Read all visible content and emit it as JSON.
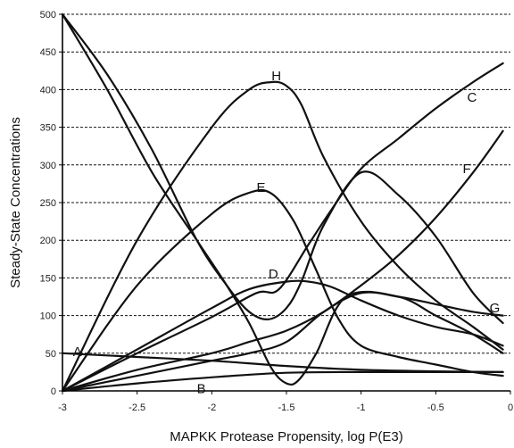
{
  "chart_data": {
    "type": "line",
    "xlabel": "MAPKK Protease Propensity, log P(E3)",
    "ylabel": "Steady-State Concentrations",
    "xlim": [
      -3,
      0
    ],
    "ylim": [
      0,
      500
    ],
    "grid": "horizontal dashed",
    "x_ticks": [
      "-3",
      "-2.5",
      "-2",
      "-1.5",
      "-1",
      "-0.5",
      "0"
    ],
    "y_ticks": [
      "0",
      "50",
      "100",
      "150",
      "200",
      "250",
      "300",
      "350",
      "400",
      "450",
      "500"
    ],
    "series": [
      {
        "name": "A",
        "label": {
          "x": -2.93,
          "y": 52
        },
        "x": [
          -3,
          -2.5,
          -2,
          -1.5,
          -1,
          -0.5,
          -0.05
        ],
        "values": [
          50,
          45,
          40,
          33,
          28,
          26,
          25
        ]
      },
      {
        "name": "B",
        "label": {
          "x": -2.1,
          "y": 3
        },
        "x": [
          -3,
          -2.5,
          -2,
          -1.5,
          -1,
          -0.5,
          -0.05
        ],
        "values": [
          0,
          10,
          18,
          24,
          25,
          25,
          25
        ]
      },
      {
        "name": "C",
        "label": {
          "x": -0.29,
          "y": 390
        },
        "x": [
          -3,
          -2.5,
          -2,
          -1.7,
          -1.55,
          -1.35,
          -1.2,
          -1,
          -0.75,
          -0.5,
          -0.25,
          -0.05
        ],
        "values": [
          0,
          50,
          98,
          130,
          135,
          195,
          240,
          295,
          335,
          375,
          410,
          435
        ]
      },
      {
        "name": "D",
        "label": {
          "x": -1.62,
          "y": 155
        },
        "x": [
          -3,
          -2.5,
          -2,
          -1.75,
          -1.5,
          -1.35,
          -1.2,
          -1,
          -0.75,
          -0.5,
          -0.25,
          -0.05
        ],
        "values": [
          0,
          55,
          110,
          135,
          145,
          145,
          138,
          120,
          100,
          85,
          75,
          60
        ]
      },
      {
        "name": "E",
        "label": {
          "x": -1.7,
          "y": 270
        },
        "x": [
          -3,
          -2.5,
          -2,
          -1.75,
          -1.6,
          -1.45,
          -1.3,
          -1.15,
          -1,
          -0.75,
          -0.5,
          -0.25,
          -0.05
        ],
        "values": [
          0,
          140,
          235,
          263,
          262,
          225,
          160,
          95,
          60,
          45,
          35,
          25,
          20
        ]
      },
      {
        "name": "F",
        "label": {
          "x": -0.32,
          "y": 295
        },
        "x": [
          -3,
          -2.5,
          -2,
          -1.75,
          -1.5,
          -1.25,
          -1,
          -0.75,
          -0.5,
          -0.25,
          -0.05
        ],
        "values": [
          0,
          28,
          50,
          65,
          80,
          105,
          140,
          180,
          230,
          290,
          345
        ]
      },
      {
        "name": "G",
        "label": {
          "x": -0.14,
          "y": 110
        },
        "x": [
          -3,
          -2.5,
          -2,
          -1.75,
          -1.5,
          -1.25,
          -1,
          -0.75,
          -0.5,
          -0.25,
          -0.05
        ],
        "values": [
          0,
          20,
          40,
          50,
          65,
          105,
          130,
          125,
          115,
          105,
          100
        ]
      },
      {
        "name": "H",
        "label": {
          "x": -1.6,
          "y": 418
        },
        "x": [
          -3,
          -2.5,
          -2,
          -1.75,
          -1.6,
          -1.5,
          -1.4,
          -1.25,
          -1,
          -0.75,
          -0.5,
          -0.25,
          -0.05
        ],
        "values": [
          0,
          200,
          350,
          400,
          410,
          405,
          380,
          310,
          225,
          165,
          120,
          85,
          55
        ]
      },
      {
        "name": "",
        "x": [
          -3,
          -2.7,
          -2.4,
          -2.1,
          -1.9,
          -1.75,
          -1.62,
          -1.5,
          -1.4,
          -1.25,
          -1,
          -0.75,
          -0.5,
          -0.25,
          -0.05
        ],
        "values": [
          500,
          420,
          320,
          200,
          140,
          105,
          95,
          110,
          145,
          220,
          290,
          260,
          205,
          130,
          90
        ]
      },
      {
        "name": "",
        "x": [
          -3,
          -2.7,
          -2.4,
          -2.1,
          -1.9,
          -1.75,
          -1.6,
          -1.5,
          -1.42,
          -1.3,
          -1.1,
          -0.75,
          -0.5,
          -0.25,
          -0.05
        ],
        "values": [
          500,
          400,
          290,
          200,
          140,
          90,
          30,
          10,
          14,
          50,
          125,
          125,
          100,
          75,
          50
        ]
      }
    ]
  }
}
